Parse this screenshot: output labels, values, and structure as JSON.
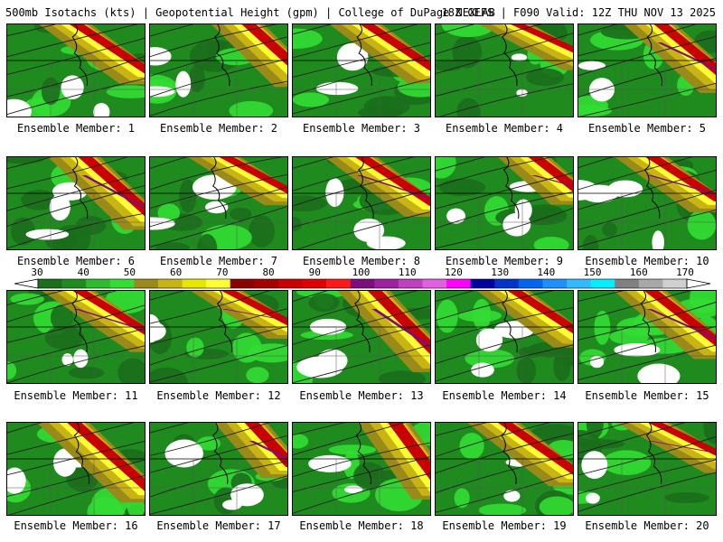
{
  "header": {
    "title_left": "500mb Isotachs (kts) | Geopotential Height (gpm) | College of DuPage NEXLAB",
    "title_right": "18Z GEFS | F090 Valid: 12Z THU NOV 13 2025"
  },
  "colorbar": {
    "labels": [
      "30",
      "40",
      "50",
      "60",
      "70",
      "80",
      "90",
      "100",
      "110",
      "120",
      "130",
      "140",
      "150",
      "160",
      "170"
    ],
    "colors": [
      "#1b6e1b",
      "#1f8b1f",
      "#2dbb2d",
      "#33dd33",
      "#9a8a1a",
      "#c8b414",
      "#e6e600",
      "#ffff33",
      "#8b0000",
      "#a40000",
      "#c80000",
      "#e00000",
      "#ff1a1a",
      "#7d0f7d",
      "#a020a0",
      "#c040c0",
      "#e060e0",
      "#ff00ff",
      "#00009c",
      "#0033cc",
      "#0066ee",
      "#1e90ff",
      "#33bbff",
      "#00eeff",
      "#808080",
      "#a8a8a8",
      "#d0d0d0"
    ]
  },
  "members": [
    {
      "label": "Ensemble Member: 1"
    },
    {
      "label": "Ensemble Member: 2"
    },
    {
      "label": "Ensemble Member: 3"
    },
    {
      "label": "Ensemble Member: 4"
    },
    {
      "label": "Ensemble Member: 5"
    },
    {
      "label": "Ensemble Member: 6"
    },
    {
      "label": "Ensemble Member: 7"
    },
    {
      "label": "Ensemble Member: 8"
    },
    {
      "label": "Ensemble Member: 9"
    },
    {
      "label": "Ensemble Member: 10"
    },
    {
      "label": "Ensemble Member: 11"
    },
    {
      "label": "Ensemble Member: 12"
    },
    {
      "label": "Ensemble Member: 13"
    },
    {
      "label": "Ensemble Member: 14"
    },
    {
      "label": "Ensemble Member: 15"
    },
    {
      "label": "Ensemble Member: 16"
    },
    {
      "label": "Ensemble Member: 17"
    },
    {
      "label": "Ensemble Member: 18"
    },
    {
      "label": "Ensemble Member: 19"
    },
    {
      "label": "Ensemble Member: 20"
    }
  ]
}
